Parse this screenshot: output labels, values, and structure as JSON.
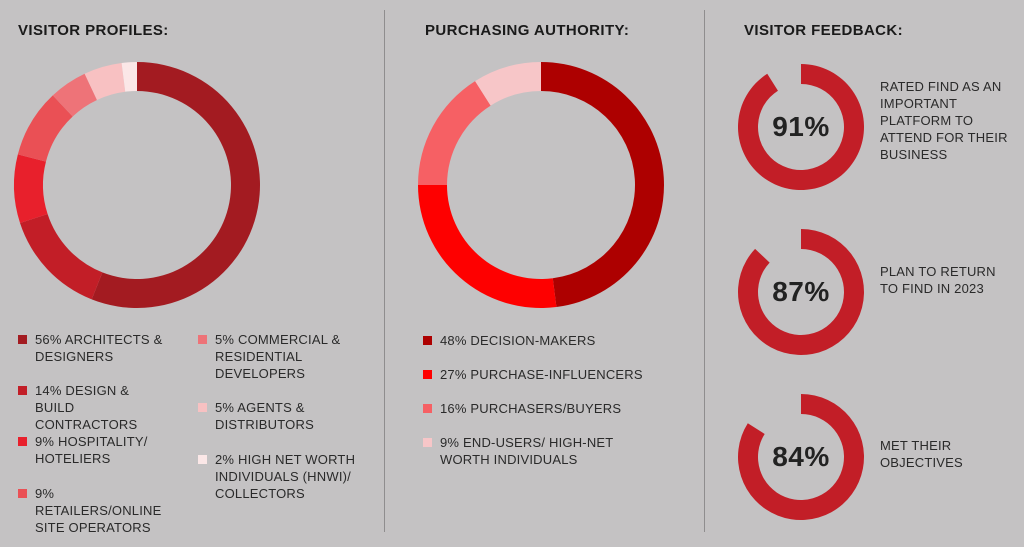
{
  "panels": {
    "visitor_profiles": {
      "heading": "VISITOR PROFILES:"
    },
    "purchasing_authority": {
      "heading": "PURCHASING AUTHORITY:"
    },
    "visitor_feedback": {
      "heading": "VISITOR FEEDBACK:"
    }
  },
  "chart_data": [
    {
      "type": "pie",
      "title": "VISITOR PROFILES:",
      "donut": true,
      "values": [
        56,
        14,
        9,
        9,
        5,
        5,
        2
      ],
      "labels": [
        "56% ARCHITECTS & DESIGNERS",
        "14% DESIGN & BUILD CONTRACTORS",
        "9% HOSPITALITY/ HOTELIERS",
        "9% RETAILERS/ONLINE SITE OPERATORS",
        "5% COMMERCIAL & RESIDENTIAL DEVELOPERS",
        "5% AGENTS & DISTRIBUTORS",
        "2% HIGH NET WORTH INDIVIDUALS (HNWI)/ COLLECTORS"
      ],
      "colors": [
        "#a31b21",
        "#c21e27",
        "#e8202c",
        "#ea5055",
        "#ee7378",
        "#f8c1c2",
        "#fbe7e7"
      ]
    },
    {
      "type": "pie",
      "title": "PURCHASING AUTHORITY:",
      "donut": true,
      "values": [
        48,
        27,
        16,
        9
      ],
      "labels": [
        "48% DECISION-MAKERS",
        "27% PURCHASE-INFLUENCERS",
        "16% PURCHASERS/BUYERS",
        "9% END-USERS/ HIGH-NET WORTH INDIVIDUALS"
      ],
      "colors": [
        "#ad0000",
        "#fe0000",
        "#f66064",
        "#f7c6c8"
      ]
    },
    {
      "type": "pie",
      "title": "VISITOR FEEDBACK:",
      "donut": true,
      "values": [
        91,
        87,
        84
      ],
      "labels": [
        "91%",
        "87%",
        "84%"
      ],
      "descriptions": [
        "RATED FIND AS AN IMPORTANT PLATFORM TO ATTEND FOR THEIR BUSINESS",
        "PLAN TO RETURN TO FIND IN 2023",
        "MET THEIR OBJECTIVES"
      ],
      "colors": [
        "#c21e27"
      ]
    }
  ]
}
